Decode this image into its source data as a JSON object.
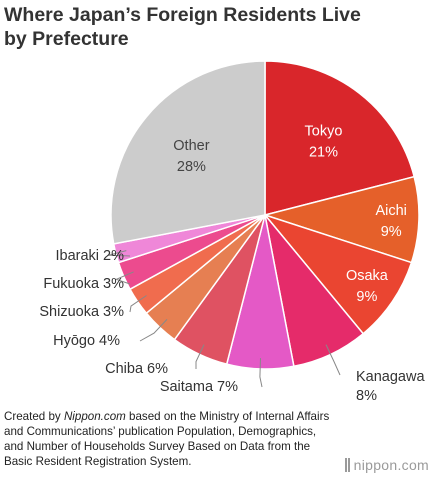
{
  "title_line1": "Where Japan’s Foreign Residents Live",
  "title_line2": "by Prefecture",
  "source": {
    "prefix": "Created by ",
    "site": "Nippon.com",
    "rest": " based on the Ministry of Internal Affairs and Communications’ publication Population, Demographics, and Number of Households Survey Based on Data from the Basic Resident Registration System."
  },
  "brand": {
    "name": "nippon",
    "domain": ".com"
  },
  "chart_data": {
    "type": "pie",
    "title": "Where Japan’s Foreign Residents Live by Prefecture",
    "unit": "%",
    "slices": [
      {
        "label": "Tokyo",
        "value": 21,
        "display": "21%",
        "color": "#d9262b"
      },
      {
        "label": "Aichi",
        "value": 9,
        "display": "9%",
        "color": "#e5602a"
      },
      {
        "label": "Osaka",
        "value": 9,
        "display": "9%",
        "color": "#ea4531"
      },
      {
        "label": "Kanagawa",
        "value": 8,
        "display": "8%",
        "color": "#e52b6a"
      },
      {
        "label": "Saitama",
        "value": 7,
        "display": "7%",
        "color": "#e459c6"
      },
      {
        "label": "Chiba",
        "value": 6,
        "display": "6%",
        "color": "#df5262"
      },
      {
        "label": "Hyōgo",
        "value": 4,
        "display": "4%",
        "color": "#e67f52"
      },
      {
        "label": "Shizuoka",
        "value": 3,
        "display": "3%",
        "color": "#f06c4e"
      },
      {
        "label": "Fukuoka",
        "value": 3,
        "display": "3%",
        "color": "#ec4b8e"
      },
      {
        "label": "Ibaraki",
        "value": 2,
        "display": "2%",
        "color": "#ef87d8"
      },
      {
        "label": "Other",
        "value": 28,
        "display": "28%",
        "color": "#cccccc"
      }
    ]
  }
}
